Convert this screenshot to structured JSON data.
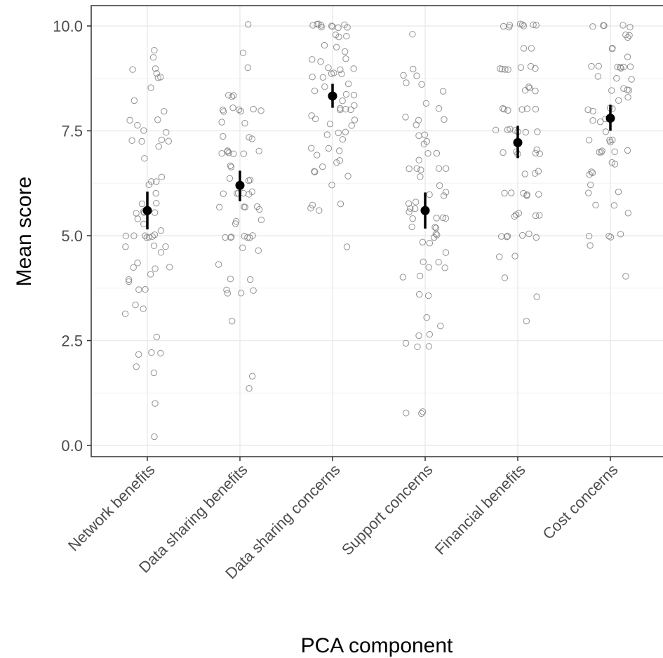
{
  "chart_data": {
    "type": "scatter",
    "title": "",
    "xlabel": "PCA component",
    "ylabel": "Mean score",
    "ylim": [
      0,
      10
    ],
    "yticks": [
      0,
      2.5,
      5,
      7.5,
      10
    ],
    "ytick_labels": [
      "0.0",
      "2.5",
      "5.0",
      "7.5",
      "10.0"
    ],
    "grid": true,
    "legend": "none",
    "categories": [
      "Network benefits",
      "Data sharing benefits",
      "Data sharing concerns",
      "Support concerns",
      "Financial benefits",
      "Cost concerns"
    ],
    "summary": {
      "name": "mean with interval",
      "means": [
        5.6,
        6.2,
        8.33,
        5.6,
        7.22,
        7.8
      ],
      "lower": [
        5.15,
        5.82,
        8.05,
        5.17,
        6.85,
        7.5
      ],
      "upper": [
        6.05,
        6.55,
        8.62,
        6.03,
        7.62,
        8.12
      ]
    },
    "points": [
      [
        9.4,
        9.3,
        9.0,
        9.0,
        8.9,
        8.75,
        8.75,
        8.5,
        8.25,
        8.0,
        7.75,
        7.75,
        7.62,
        7.5,
        7.5,
        7.25,
        7.25,
        7.25,
        7.25,
        7.1,
        6.88,
        6.38,
        6.25,
        6.25,
        6.25,
        6.0,
        5.75,
        5.75,
        5.62,
        5.5,
        5.5,
        5.5,
        5.38,
        5.25,
        5.12,
        5.0,
        5.0,
        5.0,
        5.0,
        5.0,
        5.0,
        5.0,
        4.75,
        4.75,
        4.75,
        4.62,
        4.38,
        4.25,
        4.25,
        4.25,
        4.1,
        4.0,
        3.88,
        3.75,
        3.75,
        3.38,
        3.25,
        3.12,
        2.62,
        2.25,
        2.25,
        2.12,
        1.88,
        1.75,
        1.0,
        0.25
      ],
      [
        10.0,
        9.33,
        9.0,
        8.33,
        8.33,
        8.33,
        8.0,
        8.0,
        8.0,
        8.0,
        8.0,
        8.0,
        8.0,
        7.67,
        7.67,
        7.33,
        7.33,
        7.33,
        7.0,
        7.0,
        7.0,
        7.0,
        7.0,
        7.0,
        7.0,
        6.67,
        6.67,
        6.33,
        6.33,
        6.33,
        6.0,
        6.0,
        6.0,
        6.0,
        6.0,
        6.0,
        5.67,
        5.67,
        5.67,
        5.67,
        5.67,
        5.33,
        5.33,
        5.33,
        5.0,
        5.0,
        5.0,
        5.0,
        5.0,
        5.0,
        5.0,
        4.67,
        4.67,
        4.33,
        4.0,
        4.0,
        3.67,
        3.67,
        3.67,
        3.67,
        3.0,
        1.67,
        1.33
      ],
      [
        10.0,
        10.0,
        10.0,
        10.0,
        10.0,
        10.0,
        10.0,
        10.0,
        10.0,
        10.0,
        9.75,
        9.75,
        9.75,
        9.5,
        9.5,
        9.38,
        9.25,
        9.25,
        9.12,
        9.0,
        9.0,
        9.0,
        8.88,
        8.88,
        8.88,
        8.75,
        8.75,
        8.62,
        8.5,
        8.5,
        8.38,
        8.38,
        8.25,
        8.12,
        8.0,
        8.0,
        8.0,
        8.0,
        7.88,
        7.75,
        7.75,
        7.62,
        7.62,
        7.5,
        7.5,
        7.38,
        7.25,
        7.12,
        7.12,
        7.0,
        6.88,
        6.75,
        6.75,
        6.62,
        6.5,
        6.5,
        6.38,
        6.25,
        5.75,
        5.75,
        5.62,
        5.62,
        4.75
      ],
      [
        9.8,
        9.0,
        8.8,
        8.8,
        8.6,
        8.6,
        8.4,
        8.2,
        8.0,
        7.8,
        7.8,
        7.8,
        7.6,
        7.4,
        7.4,
        7.2,
        7.2,
        7.0,
        7.0,
        6.8,
        6.6,
        6.6,
        6.6,
        6.6,
        6.6,
        6.4,
        6.2,
        6.0,
        6.0,
        6.0,
        5.8,
        5.8,
        5.6,
        5.6,
        5.6,
        5.4,
        5.4,
        5.4,
        5.4,
        5.2,
        5.2,
        5.2,
        5.0,
        5.0,
        5.0,
        4.8,
        4.8,
        4.6,
        4.4,
        4.4,
        4.2,
        4.2,
        4.0,
        4.0,
        3.6,
        3.6,
        3.0,
        2.8,
        2.6,
        2.6,
        2.4,
        2.4,
        2.4,
        0.8,
        0.8,
        0.8
      ],
      [
        10.0,
        10.0,
        10.0,
        10.0,
        10.0,
        10.0,
        10.0,
        10.0,
        9.5,
        9.5,
        9.0,
        9.0,
        9.0,
        9.0,
        9.0,
        9.0,
        9.0,
        8.5,
        8.5,
        8.5,
        8.5,
        8.0,
        8.0,
        8.0,
        8.0,
        8.0,
        8.0,
        7.5,
        7.5,
        7.5,
        7.5,
        7.5,
        7.5,
        7.5,
        7.0,
        7.0,
        7.0,
        7.0,
        7.0,
        7.0,
        6.5,
        6.5,
        6.5,
        6.0,
        6.0,
        6.0,
        6.0,
        6.0,
        6.0,
        5.5,
        5.5,
        5.5,
        5.5,
        5.5,
        5.0,
        5.0,
        5.0,
        5.0,
        5.0,
        5.0,
        4.5,
        4.5,
        4.0,
        3.5,
        3.0
      ],
      [
        10.0,
        10.0,
        10.0,
        10.0,
        10.0,
        9.75,
        9.75,
        9.75,
        9.5,
        9.5,
        9.25,
        9.0,
        9.0,
        9.0,
        9.0,
        9.0,
        9.0,
        9.0,
        8.75,
        8.75,
        8.75,
        8.5,
        8.5,
        8.5,
        8.5,
        8.25,
        8.25,
        8.0,
        8.0,
        8.0,
        8.0,
        7.75,
        7.75,
        7.75,
        7.5,
        7.25,
        7.25,
        7.25,
        7.25,
        7.0,
        7.0,
        7.0,
        7.0,
        7.0,
        6.75,
        6.75,
        6.5,
        6.5,
        6.5,
        6.25,
        6.0,
        6.0,
        5.75,
        5.75,
        5.5,
        5.0,
        5.0,
        5.0,
        5.0,
        4.75,
        4.0
      ]
    ],
    "colors": {
      "panel_border": "#333333",
      "grid_major": "#ebebeb",
      "grid_minor": "#f4f4f4",
      "point_stroke": "#7f7f7f",
      "summary": "#000000",
      "tick_label": "#4d4d4d",
      "tick_mark": "#333333"
    }
  }
}
